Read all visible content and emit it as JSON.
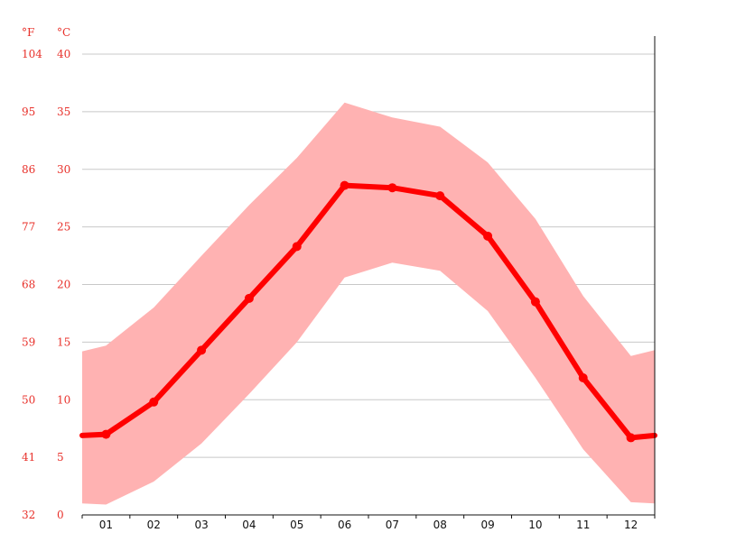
{
  "chart_data": {
    "type": "line",
    "title": "",
    "xlabel": "",
    "ylabel": "",
    "unit_f": "°F",
    "unit_c": "°C",
    "months": [
      "01",
      "02",
      "03",
      "04",
      "05",
      "06",
      "07",
      "08",
      "09",
      "10",
      "11",
      "12"
    ],
    "celsius_ticks": [
      "0",
      "5",
      "10",
      "15",
      "20",
      "25",
      "30",
      "35",
      "40"
    ],
    "fahrenheit_ticks": [
      "32",
      "41",
      "50",
      "59",
      "68",
      "77",
      "86",
      "95",
      "104"
    ],
    "ylim_c": [
      0,
      40
    ],
    "grid": true,
    "series": [
      {
        "values": [
          7.0,
          9.8,
          14.3,
          18.8,
          23.3,
          28.6,
          28.4,
          27.7,
          24.2,
          18.5,
          11.9,
          6.7
        ]
      }
    ],
    "band_min": [
      0.9,
      2.9,
      6.2,
      10.5,
      15.0,
      20.6,
      21.9,
      21.2,
      17.7,
      11.9,
      5.7,
      1.1
    ],
    "band_max": [
      14.7,
      18.0,
      22.5,
      26.9,
      31.0,
      35.8,
      34.5,
      33.7,
      30.6,
      25.7,
      19.0,
      13.8
    ],
    "edge_left": {
      "value": 6.9,
      "min": 1.0,
      "max": 14.2
    },
    "edge_right": {
      "value": 6.9,
      "min": 1.0,
      "max": 14.3
    },
    "colors": {
      "line": "#ff0000",
      "band": "#ffb2b2",
      "axis_labels": "#e8302a",
      "grid": "#c8c8c8"
    }
  }
}
